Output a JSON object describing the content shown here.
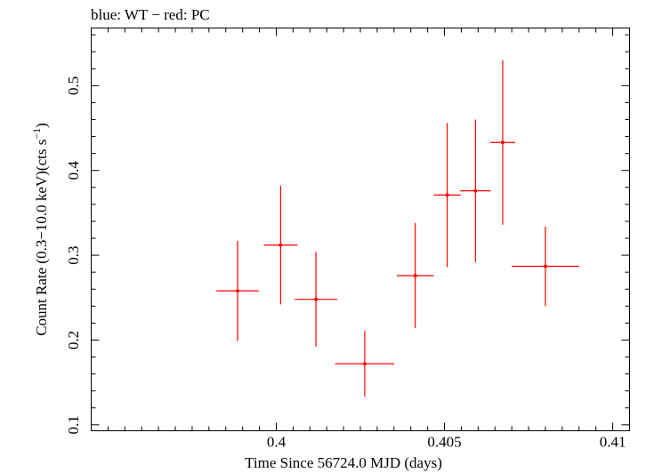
{
  "chart_data": {
    "type": "scatter",
    "title": "blue: WT − red: PC",
    "xlabel": "Time Since 56724.0 MJD (days)",
    "ylabel_main": "Count Rate (0.3−10.0 keV)(cts s",
    "ylabel_sup": "−1",
    "ylabel_end": ")",
    "xlim": [
      0.3945,
      0.4105
    ],
    "ylim": [
      0.093,
      0.568
    ],
    "x_ticks": [
      0.4,
      0.405,
      0.41
    ],
    "x_tick_labels": [
      "0.4",
      "0.405",
      "0.41"
    ],
    "y_ticks": [
      0.1,
      0.2,
      0.3,
      0.4,
      0.5
    ],
    "y_tick_labels": [
      "0.1",
      "0.2",
      "0.3",
      "0.4",
      "0.5"
    ],
    "grid": false,
    "series": [
      {
        "color": "#ff0000",
        "points": [
          {
            "x": 0.39885,
            "xerr": 0.00063,
            "y": 0.258,
            "yerr": 0.059
          },
          {
            "x": 0.40013,
            "xerr": 0.0005,
            "y": 0.312,
            "yerr": 0.07
          },
          {
            "x": 0.40118,
            "xerr": 0.00063,
            "y": 0.248,
            "yerr": 0.056
          },
          {
            "x": 0.40263,
            "xerr": 0.00088,
            "y": 0.172,
            "yerr": 0.039
          },
          {
            "x": 0.40413,
            "xerr": 0.00055,
            "y": 0.276,
            "yerr": 0.062
          },
          {
            "x": 0.40508,
            "xerr": 0.0004,
            "y": 0.371,
            "yerr": 0.085
          },
          {
            "x": 0.40592,
            "xerr": 0.00045,
            "y": 0.376,
            "yerr": 0.084
          },
          {
            "x": 0.40673,
            "xerr": 0.00037,
            "y": 0.433,
            "yerr": 0.097
          },
          {
            "x": 0.408,
            "xerr": 0.001,
            "y": 0.287,
            "yerr": 0.047
          }
        ]
      }
    ]
  }
}
